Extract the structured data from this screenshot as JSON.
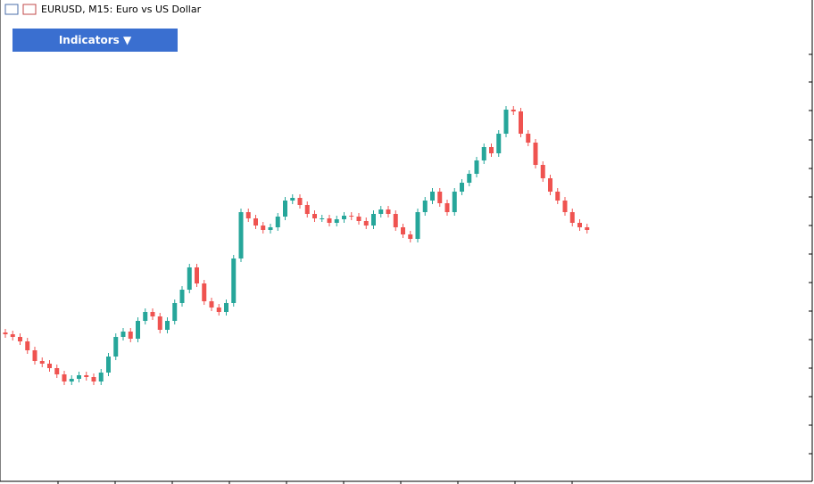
{
  "window_title": "EURUSD, M15:  Euro vs US Dollar",
  "button": "Indicators ▼",
  "chart_data": {
    "type": "candlestick",
    "ylim": [
      0,
      543
    ],
    "yticks": [
      482,
      451,
      419,
      386,
      354,
      322,
      290,
      258,
      226,
      194,
      162,
      130,
      98,
      66,
      34
    ],
    "up_color": "#26a69a",
    "down_color": "#ef5350",
    "open": [
      170,
      168,
      165,
      160,
      150,
      138,
      135,
      130,
      123,
      115,
      118,
      122,
      120,
      115,
      125,
      143,
      165,
      171,
      163,
      183,
      193,
      188,
      173,
      183,
      203,
      218,
      243,
      225,
      205,
      198,
      193,
      203,
      253,
      305,
      298,
      290,
      285,
      288,
      300,
      318,
      321,
      313,
      303,
      298,
      298,
      293,
      297,
      301,
      300,
      295,
      290,
      303,
      308,
      303,
      288,
      280,
      275,
      305,
      318,
      328,
      315,
      305,
      328,
      338,
      348,
      363,
      378,
      371,
      393,
      420,
      418,
      393,
      383,
      358,
      343,
      328,
      318,
      305,
      293,
      288
    ],
    "high": [
      174,
      172,
      169,
      164,
      154,
      142,
      139,
      134,
      127,
      122,
      126,
      126,
      124,
      129,
      147,
      169,
      175,
      175,
      187,
      197,
      197,
      192,
      187,
      207,
      222,
      247,
      247,
      229,
      209,
      202,
      207,
      257,
      309,
      309,
      302,
      294,
      292,
      304,
      322,
      325,
      325,
      317,
      307,
      302,
      302,
      301,
      305,
      305,
      304,
      299,
      307,
      312,
      312,
      307,
      292,
      284,
      309,
      322,
      332,
      332,
      319,
      332,
      342,
      352,
      367,
      382,
      382,
      397,
      424,
      424,
      422,
      397,
      387,
      362,
      347,
      332,
      322,
      309,
      297,
      292
    ],
    "low": [
      164,
      161,
      156,
      146,
      134,
      131,
      126,
      119,
      111,
      111,
      114,
      116,
      111,
      111,
      121,
      139,
      161,
      159,
      159,
      179,
      184,
      169,
      169,
      179,
      199,
      214,
      221,
      201,
      194,
      189,
      189,
      199,
      249,
      294,
      286,
      281,
      281,
      284,
      296,
      314,
      309,
      299,
      294,
      294,
      289,
      289,
      293,
      296,
      291,
      286,
      286,
      299,
      299,
      284,
      276,
      271,
      271,
      301,
      314,
      311,
      301,
      301,
      324,
      334,
      344,
      359,
      367,
      367,
      389,
      414,
      389,
      379,
      354,
      339,
      324,
      314,
      301,
      289,
      284,
      281
    ],
    "close": [
      168,
      165,
      160,
      150,
      138,
      135,
      130,
      123,
      115,
      118,
      122,
      120,
      115,
      125,
      143,
      165,
      171,
      163,
      183,
      193,
      188,
      173,
      183,
      203,
      218,
      243,
      225,
      205,
      198,
      193,
      203,
      253,
      305,
      298,
      290,
      285,
      288,
      300,
      318,
      321,
      313,
      303,
      298,
      298,
      293,
      297,
      301,
      300,
      295,
      290,
      303,
      308,
      303,
      288,
      280,
      275,
      305,
      318,
      328,
      315,
      305,
      328,
      338,
      348,
      363,
      378,
      371,
      393,
      420,
      418,
      393,
      383,
      358,
      343,
      328,
      318,
      305,
      293,
      288,
      285
    ]
  }
}
